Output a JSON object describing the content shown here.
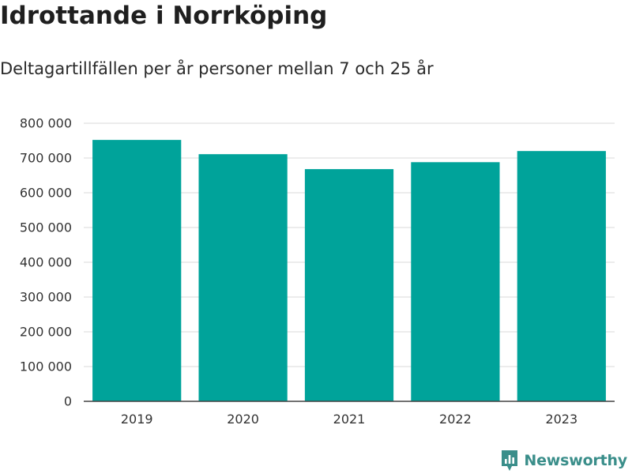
{
  "title": "Idrottande i Norrköping",
  "subtitle": "Deltagartillfällen per år personer mellan 7 och 25 år",
  "brand": {
    "name": "Newsworthy",
    "icon": "newsworthy-logo-icon",
    "color": "#3a8e8a"
  },
  "chart_data": {
    "type": "bar",
    "title": "Idrottande i Norrköping",
    "subtitle": "Deltagartillfällen per år personer mellan 7 och 25 år",
    "categories": [
      "2019",
      "2020",
      "2021",
      "2022",
      "2023"
    ],
    "values": [
      752000,
      711000,
      668000,
      688000,
      720000
    ],
    "ylim": [
      0,
      800000
    ],
    "yticks": [
      0,
      100000,
      200000,
      300000,
      400000,
      500000,
      600000,
      700000,
      800000
    ],
    "ytick_labels": [
      "0",
      "100 000",
      "200 000",
      "300 000",
      "400 000",
      "500 000",
      "600 000",
      "700 000",
      "800 000"
    ],
    "xlabel": "",
    "ylabel": "",
    "grid": true,
    "bar_color": "#00a39a",
    "grid_color": "#e1e1e1",
    "axis_color": "#444444"
  }
}
